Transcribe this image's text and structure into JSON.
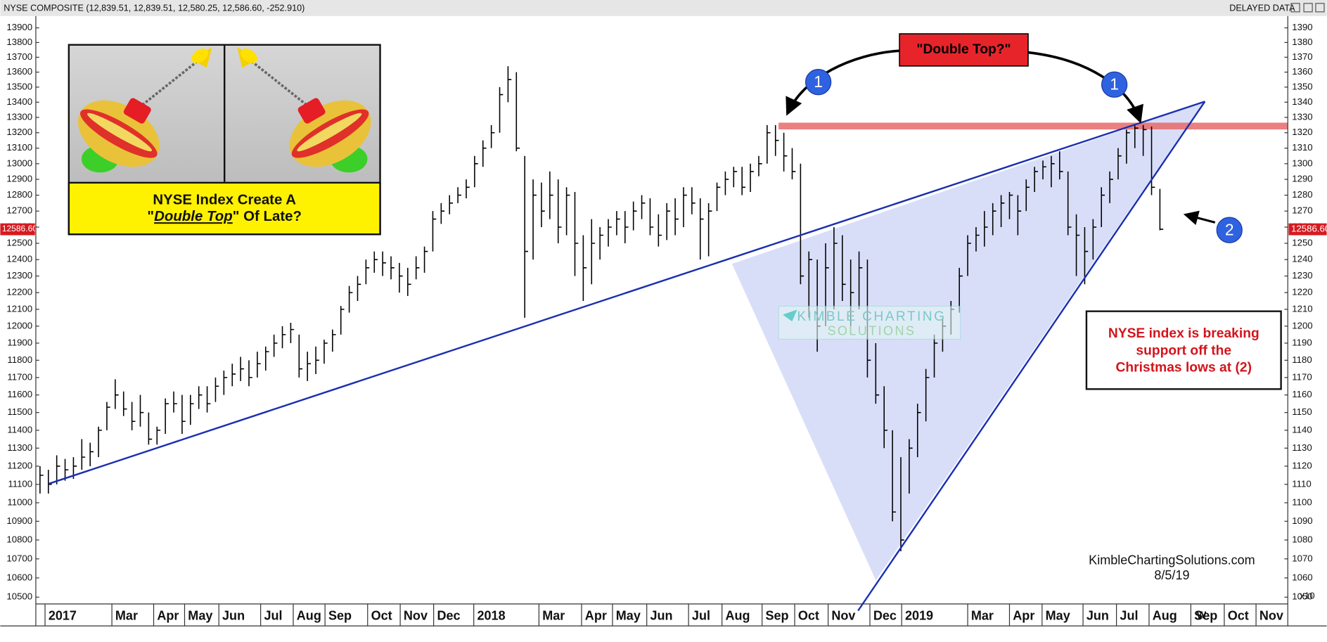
{
  "header": {
    "title": "NYSE COMPOSITE (12,839.51, 12,839.51, 12,580.25, 12,586.60, -252.910)",
    "status": "DELAYED DATA",
    "timeframe": "W"
  },
  "chart_data": {
    "type": "ohlc",
    "log_scale": true,
    "color": "#000000",
    "last_price_label": "12586.60",
    "y2_unit_label": "x10",
    "high": [
      11200,
      11180,
      11260,
      11240,
      11250,
      11350,
      11330,
      11420,
      11560,
      11690,
      11620,
      11560,
      11600,
      11500,
      11420,
      11580,
      11620,
      11600,
      11600,
      11650,
      11650,
      11700,
      11740,
      11780,
      11820,
      11800,
      11850,
      11880,
      11950,
      12000,
      12020,
      11950,
      11850,
      11880,
      11920,
      11980,
      12120,
      12240,
      12300,
      12400,
      12450,
      12450,
      12420,
      12380,
      12350,
      12420,
      12480,
      12700,
      12750,
      12800,
      12850,
      12900,
      13050,
      13150,
      13250,
      13500,
      13640,
      13600,
      13050,
      12900,
      12880,
      12950,
      12900,
      12850,
      12820,
      12550,
      12650,
      12600,
      12650,
      12700,
      12700,
      12760,
      12800,
      12780,
      12680,
      12750,
      12780,
      12850,
      12850,
      12780,
      12750,
      12880,
      12950,
      12980,
      12980,
      13000,
      13050,
      13250,
      13250,
      13200,
      13100,
      13000,
      12450,
      12400,
      12500,
      12600,
      12550,
      12400,
      12450,
      12400,
      11900,
      11650,
      11400,
      11250,
      11350,
      11550,
      11750,
      11950,
      12050,
      12150,
      12350,
      12550,
      12600,
      12700,
      12750,
      12800,
      12820,
      12800,
      12900,
      12980,
      13020,
      13050,
      13080,
      12950,
      12680,
      12600,
      12650,
      12850,
      12950,
      13100,
      13220,
      13250,
      13250,
      13240,
      12839.51
    ],
    "low": [
      11050,
      11050,
      11100,
      11120,
      11130,
      11180,
      11200,
      11250,
      11400,
      11520,
      11480,
      11400,
      11420,
      11320,
      11320,
      11380,
      11500,
      11380,
      11430,
      11520,
      11500,
      11560,
      11600,
      11650,
      11680,
      11650,
      11700,
      11740,
      11820,
      11870,
      11900,
      11700,
      11680,
      11720,
      11780,
      11850,
      11950,
      12080,
      12150,
      12250,
      12320,
      12300,
      12280,
      12200,
      12180,
      12280,
      12320,
      12450,
      12620,
      12680,
      12750,
      12780,
      12850,
      12980,
      13100,
      13200,
      13400,
      13080,
      12050,
      12400,
      12600,
      12650,
      12500,
      12550,
      12300,
      12150,
      12250,
      12400,
      12480,
      12550,
      12500,
      12580,
      12650,
      12550,
      12480,
      12520,
      12550,
      12600,
      12680,
      12400,
      12420,
      12700,
      12800,
      12850,
      12800,
      12820,
      12920,
      13000,
      13050,
      12950,
      12900,
      12250,
      12050,
      11850,
      12000,
      12100,
      12150,
      11950,
      12100,
      11700,
      11550,
      11300,
      10900,
      10740,
      11050,
      11250,
      11450,
      11700,
      11850,
      11950,
      12080,
      12300,
      12450,
      12480,
      12550,
      12600,
      12650,
      12550,
      12700,
      12820,
      12900,
      12850,
      12900,
      12550,
      12300,
      12250,
      12400,
      12600,
      12750,
      12900,
      13000,
      13100,
      13050,
      12800,
      12580.25
    ],
    "close": [
      11150,
      11100,
      11200,
      11180,
      11200,
      11250,
      11280,
      11400,
      11530,
      11600,
      11520,
      11450,
      11500,
      11350,
      11400,
      11550,
      11550,
      11450,
      11550,
      11600,
      11550,
      11650,
      11700,
      11720,
      11750,
      11700,
      11780,
      11850,
      11900,
      11950,
      11980,
      11750,
      11780,
      11800,
      11900,
      11950,
      12100,
      12200,
      12250,
      12350,
      12400,
      12380,
      12350,
      12300,
      12250,
      12350,
      12450,
      12650,
      12700,
      12750,
      12800,
      12850,
      13000,
      13100,
      13200,
      13450,
      13550,
      13100,
      12450,
      12800,
      12700,
      12800,
      12600,
      12800,
      12500,
      12350,
      12500,
      12550,
      12600,
      12650,
      12600,
      12700,
      12750,
      12600,
      12550,
      12700,
      12650,
      12800,
      12750,
      12650,
      12700,
      12850,
      12900,
      12950,
      12850,
      12950,
      13000,
      13200,
      13150,
      13050,
      12950,
      12300,
      12400,
      12000,
      12350,
      12500,
      12250,
      12200,
      12350,
      11800,
      11600,
      11400,
      10950,
      10800,
      11300,
      11500,
      11700,
      11900,
      12000,
      12100,
      12300,
      12500,
      12550,
      12600,
      12700,
      12750,
      12800,
      12700,
      12850,
      12950,
      12980,
      13000,
      12950,
      12600,
      12550,
      12450,
      12600,
      12800,
      12900,
      13050,
      13200,
      13230,
      13220,
      12850,
      12586.6
    ],
    "xlim": [
      -0.5,
      149.3
    ],
    "xticks": [
      {
        "value": 0.6,
        "label": "2017"
      },
      {
        "value": 8.6,
        "label": "Mar"
      },
      {
        "value": 13.6,
        "label": "Apr"
      },
      {
        "value": 17.3,
        "label": "May"
      },
      {
        "value": 21.4,
        "label": "Jun"
      },
      {
        "value": 26.4,
        "label": "Jul"
      },
      {
        "value": 30.3,
        "label": "Aug"
      },
      {
        "value": 34.1,
        "label": "Sep"
      },
      {
        "value": 39.2,
        "label": "Oct"
      },
      {
        "value": 43.1,
        "label": "Nov"
      },
      {
        "value": 47.1,
        "label": "Dec"
      },
      {
        "value": 51.9,
        "label": "2018"
      },
      {
        "value": 59.7,
        "label": "Mar"
      },
      {
        "value": 64.8,
        "label": "Apr"
      },
      {
        "value": 68.5,
        "label": "May"
      },
      {
        "value": 72.6,
        "label": "Jun"
      },
      {
        "value": 77.6,
        "label": "Jul"
      },
      {
        "value": 81.6,
        "label": "Aug"
      },
      {
        "value": 86.4,
        "label": "Sep"
      },
      {
        "value": 90.3,
        "label": "Oct"
      },
      {
        "value": 94.3,
        "label": "Nov"
      },
      {
        "value": 99.3,
        "label": "Dec"
      },
      {
        "value": 103.1,
        "label": "2019"
      },
      {
        "value": 111,
        "label": "Mar"
      },
      {
        "value": 116,
        "label": "Apr"
      },
      {
        "value": 119.9,
        "label": "May"
      },
      {
        "value": 124.8,
        "label": "Jun"
      },
      {
        "value": 128.8,
        "label": "Jul"
      },
      {
        "value": 132.7,
        "label": "Aug"
      },
      {
        "value": 137.7,
        "label": "Sep"
      },
      {
        "value": 141.7,
        "label": "Oct"
      },
      {
        "value": 145.5,
        "label": "Nov"
      }
    ],
    "ylim": [
      10465,
      13975
    ],
    "yticks": [
      10500,
      10600,
      10700,
      10800,
      10900,
      11000,
      11100,
      11200,
      11300,
      11400,
      11500,
      11600,
      11700,
      11800,
      11900,
      12000,
      12100,
      12200,
      12300,
      12400,
      12500,
      12600,
      12700,
      12800,
      12900,
      13000,
      13100,
      13200,
      13300,
      13400,
      13500,
      13600,
      13700,
      13800,
      13900
    ],
    "y2lim": [
      1046.5,
      1397.5
    ],
    "y2ticks": [
      1050,
      1060,
      1070,
      1080,
      1090,
      1100,
      1110,
      1120,
      1130,
      1140,
      1150,
      1160,
      1170,
      1180,
      1190,
      1200,
      1210,
      1220,
      1230,
      1240,
      1250,
      1260,
      1270,
      1280,
      1290,
      1300,
      1310,
      1320,
      1330,
      1340,
      1350,
      1360,
      1370,
      1380,
      1390
    ]
  },
  "annotations": {
    "callout": "\"Double Top?\"",
    "markers": [
      "1",
      "1",
      "2"
    ],
    "note_lines": [
      "NYSE index is breaking",
      "support off the",
      "Christmas lows at (2)"
    ],
    "watermark": [
      "KIMBLE CHARTING",
      "SOLUTIONS"
    ],
    "credit": "KimbleChartingSolutions.com",
    "date": "8/5/19"
  },
  "inset": {
    "line1": "NYSE Index Create A",
    "line2_open": "\"",
    "line2_em": "Double Top",
    "line2_close": "\" Of Late?"
  }
}
